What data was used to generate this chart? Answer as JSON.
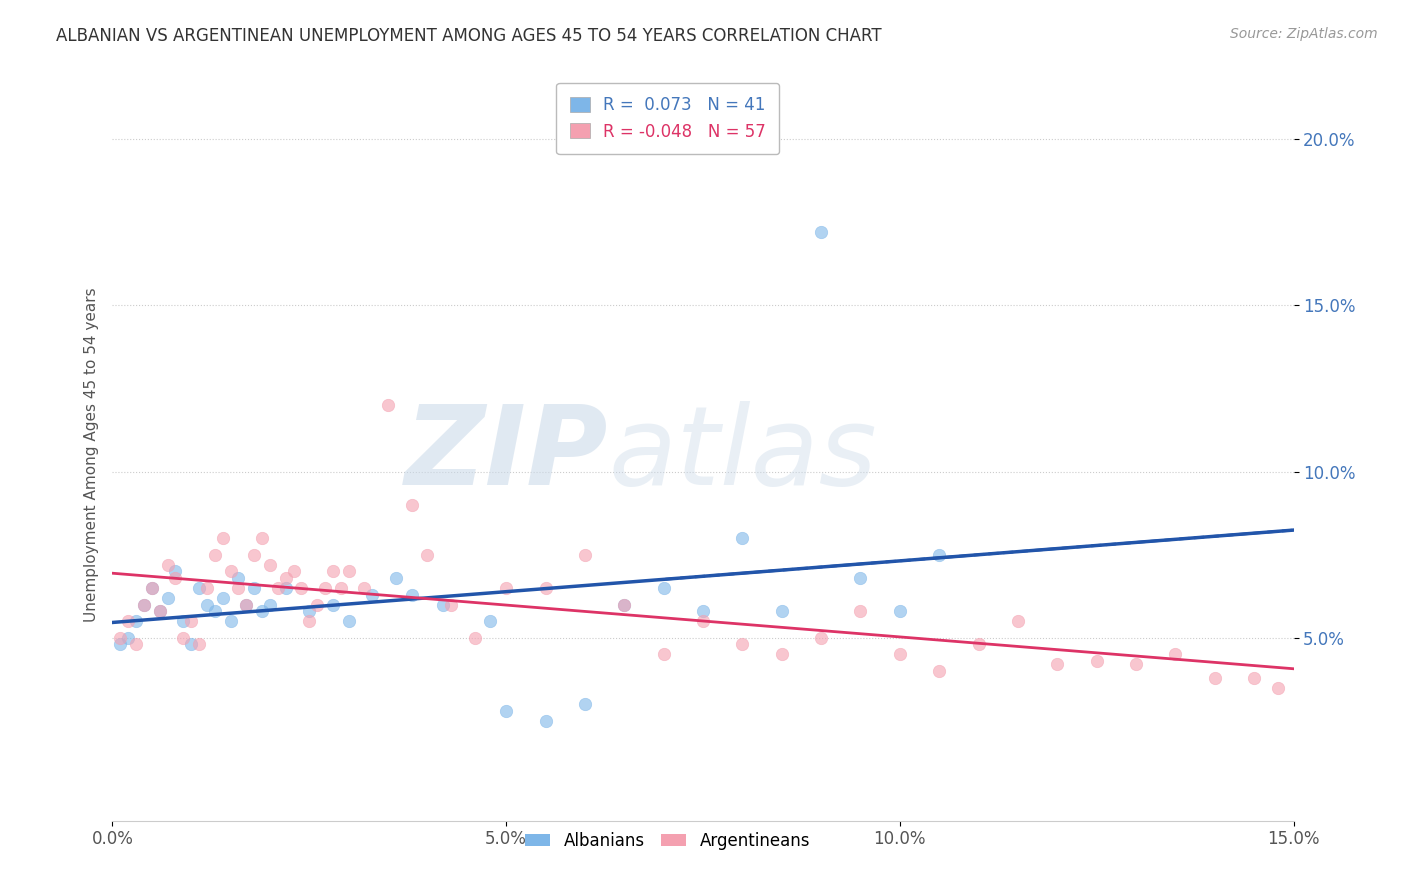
{
  "title": "ALBANIAN VS ARGENTINEAN UNEMPLOYMENT AMONG AGES 45 TO 54 YEARS CORRELATION CHART",
  "source": "Source: ZipAtlas.com",
  "ylabel": "Unemployment Among Ages 45 to 54 years",
  "xlim": [
    0.0,
    0.15
  ],
  "ylim": [
    -0.005,
    0.215
  ],
  "xticks": [
    0.0,
    0.05,
    0.1,
    0.15
  ],
  "xtick_labels": [
    "0.0%",
    "5.0%",
    "10.0%",
    "15.0%"
  ],
  "yticks": [
    0.05,
    0.1,
    0.15,
    0.2
  ],
  "ytick_labels": [
    "5.0%",
    "10.0%",
    "15.0%",
    "20.0%"
  ],
  "albanian_R": 0.073,
  "albanian_N": 41,
  "argentinean_R": -0.048,
  "argentinean_N": 57,
  "blue_color": "#7EB6E8",
  "pink_color": "#F4A0B0",
  "blue_line_color": "#2255AA",
  "pink_line_color": "#DD3366",
  "blue_text_color": "#4477BB",
  "pink_text_color": "#DD3366",
  "albanian_x": [
    0.001,
    0.002,
    0.003,
    0.004,
    0.005,
    0.006,
    0.007,
    0.008,
    0.009,
    0.01,
    0.011,
    0.012,
    0.013,
    0.014,
    0.015,
    0.016,
    0.017,
    0.018,
    0.019,
    0.02,
    0.022,
    0.025,
    0.028,
    0.03,
    0.033,
    0.036,
    0.038,
    0.042,
    0.048,
    0.05,
    0.055,
    0.06,
    0.065,
    0.07,
    0.075,
    0.08,
    0.085,
    0.09,
    0.095,
    0.1,
    0.105
  ],
  "albanian_y": [
    0.048,
    0.05,
    0.055,
    0.06,
    0.065,
    0.058,
    0.062,
    0.07,
    0.055,
    0.048,
    0.065,
    0.06,
    0.058,
    0.062,
    0.055,
    0.068,
    0.06,
    0.065,
    0.058,
    0.06,
    0.065,
    0.058,
    0.06,
    0.055,
    0.063,
    0.068,
    0.063,
    0.06,
    0.055,
    0.028,
    0.025,
    0.03,
    0.06,
    0.065,
    0.058,
    0.08,
    0.058,
    0.172,
    0.068,
    0.058,
    0.075
  ],
  "argentinean_x": [
    0.001,
    0.002,
    0.003,
    0.004,
    0.005,
    0.006,
    0.007,
    0.008,
    0.009,
    0.01,
    0.011,
    0.012,
    0.013,
    0.014,
    0.015,
    0.016,
    0.017,
    0.018,
    0.019,
    0.02,
    0.021,
    0.022,
    0.023,
    0.024,
    0.025,
    0.026,
    0.027,
    0.028,
    0.029,
    0.03,
    0.032,
    0.035,
    0.038,
    0.04,
    0.043,
    0.046,
    0.05,
    0.055,
    0.06,
    0.065,
    0.07,
    0.075,
    0.08,
    0.085,
    0.09,
    0.095,
    0.1,
    0.105,
    0.11,
    0.115,
    0.12,
    0.125,
    0.13,
    0.135,
    0.14,
    0.145,
    0.148
  ],
  "argentinean_y": [
    0.05,
    0.055,
    0.048,
    0.06,
    0.065,
    0.058,
    0.072,
    0.068,
    0.05,
    0.055,
    0.048,
    0.065,
    0.075,
    0.08,
    0.07,
    0.065,
    0.06,
    0.075,
    0.08,
    0.072,
    0.065,
    0.068,
    0.07,
    0.065,
    0.055,
    0.06,
    0.065,
    0.07,
    0.065,
    0.07,
    0.065,
    0.12,
    0.09,
    0.075,
    0.06,
    0.05,
    0.065,
    0.065,
    0.075,
    0.06,
    0.045,
    0.055,
    0.048,
    0.045,
    0.05,
    0.058,
    0.045,
    0.04,
    0.048,
    0.055,
    0.042,
    0.043,
    0.042,
    0.045,
    0.038,
    0.038,
    0.035
  ]
}
